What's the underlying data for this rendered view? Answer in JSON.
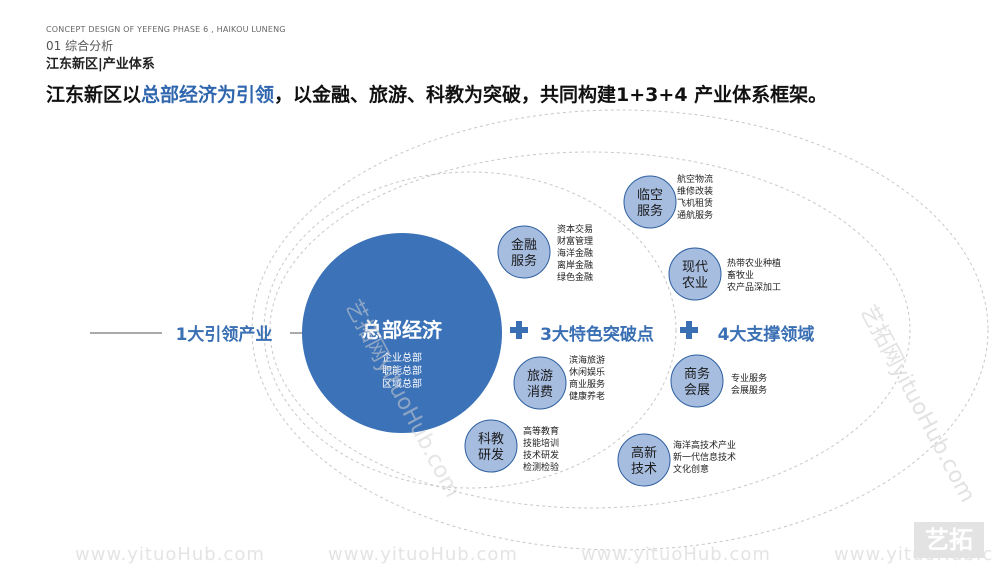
{
  "header": {
    "project_en": "CONCEPT DESIGN OF YEFENG PHASE 6 , HAIKOU LUNENG",
    "section": "01 综合分析",
    "subtitle": "江东新区|产业体系"
  },
  "headline": {
    "prefix": "江东新区以",
    "highlight": "总部经济为引领",
    "suffix": "，以金融、旅游、科教为突破，共同构建1+3+4 产业体系框架。"
  },
  "diagram": {
    "axis_labels": {
      "lead": "1大引领产业",
      "featured": "3大特色突破点",
      "support": "4大支撑领域"
    },
    "core": {
      "title": "总部经济",
      "items": [
        "企业总部",
        "职能总部",
        "区域总部"
      ]
    },
    "featured_nodes": [
      {
        "name": "金融\n服务",
        "items": [
          "资本交易",
          "财富管理",
          "海洋金融",
          "离岸金融",
          "绿色金融"
        ]
      },
      {
        "name": "旅游\n消费",
        "items": [
          "滨海旅游",
          "休闲娱乐",
          "商业服务",
          "健康养老"
        ]
      },
      {
        "name": "科教\n研发",
        "items": [
          "高等教育",
          "技能培训",
          "技术研发",
          "检测检验"
        ]
      }
    ],
    "support_nodes": [
      {
        "name": "临空\n服务",
        "items": [
          "航空物流",
          "维修改装",
          "飞机租赁",
          "通航服务"
        ]
      },
      {
        "name": "现代\n农业",
        "items": [
          "热带农业种植",
          "畜牧业",
          "农产品深加工"
        ]
      },
      {
        "name": "商务\n会展",
        "items": [
          "专业服务",
          "会展服务"
        ]
      },
      {
        "name": "高新\n技术",
        "items": [
          "海洋高技术产业",
          "新一代信息技术",
          "文化创意"
        ]
      }
    ]
  },
  "watermarks": {
    "diagonal": "艺拓网yituoHub.com",
    "bottom": "www.yituoHub.com",
    "logo": "艺拓"
  },
  "colors": {
    "primary": "#3a6fb4",
    "core_fill": "#3c72b8",
    "node_fill": "#a7bde0",
    "node_stroke": "#2d5f9f",
    "text_dark": "#222222"
  }
}
